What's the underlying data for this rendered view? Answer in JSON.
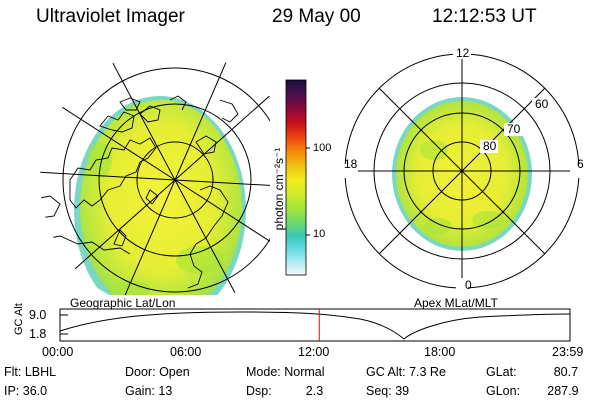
{
  "header": {
    "instrument": "Ultraviolet Imager",
    "date": "29 May 00",
    "time": "12:12:53 UT"
  },
  "geo_panel": {
    "label": "Geographic Lat/Lon"
  },
  "apex_panel": {
    "label": "Apex MLat/MLT",
    "mlt_labels": {
      "top": "12",
      "right": "6",
      "bottom": "0",
      "left": "18"
    },
    "lat_labels": [
      "60",
      "70",
      "80"
    ]
  },
  "colorbar": {
    "unit_label": "photon cm⁻²s⁻¹",
    "ticks": [
      "100",
      "10"
    ],
    "colors": [
      "#1a0f3a",
      "#4b1050",
      "#8a0a3c",
      "#c8101c",
      "#f04a10",
      "#f58a0c",
      "#f2c010",
      "#f3ec19",
      "#d2ec28",
      "#a6e43a",
      "#6fd86a",
      "#37c8b4",
      "#60d8e0",
      "#a0e8ef",
      "#d8f2f6",
      "#f6fafb"
    ]
  },
  "altitude_plot": {
    "ylabel": "GC Alt",
    "yticks": [
      "9.0",
      "1.8"
    ],
    "xticks": [
      "00:00",
      "06:00",
      "12:00",
      "18:00",
      "23:59"
    ],
    "current_time_hours": 12.2
  },
  "footer": {
    "filter_label": "Flt:",
    "filter_value": "LBHL",
    "door_label": "Door:",
    "door_value": "Open",
    "mode_label": "Mode:",
    "mode_value": "Normal",
    "gcalt_label": "GC Alt:",
    "gcalt_value": "7.3 Re",
    "glat_label": "GLat:",
    "glat_value": "80.7",
    "ip_label": "IP:",
    "ip_value": "36.0",
    "gain_label": "Gain:",
    "gain_value": "13",
    "dsp_label": "Dsp:",
    "dsp_value": "2.3",
    "seq_label": "Seq:",
    "seq_value": "39",
    "glon_label": "GLon:",
    "glon_value": "287.9"
  },
  "colors": {
    "aurora_yellow": "#eef032",
    "aurora_green": "#9ee04a",
    "aurora_cyan": "#70dcc8",
    "time_marker": "#d01010"
  }
}
